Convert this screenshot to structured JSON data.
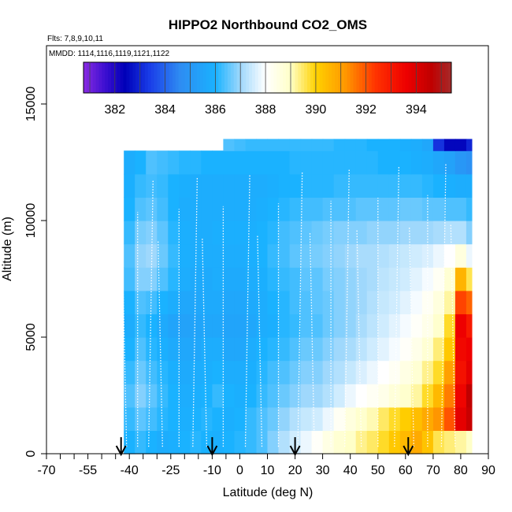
{
  "chart_data": {
    "type": "heatmap",
    "title": "HIPPO2 Northbound CO2_OMS",
    "flights_label": "Flts: 7,8,9,10,11",
    "dates_label": "MMDD: 1114,1116,1119,1121,1122",
    "xlabel": "Latitude (deg N)",
    "ylabel": "Altitude (m)",
    "xlim": [
      -70,
      90
    ],
    "ylim": [
      0,
      17500
    ],
    "x_tick_values": [
      -70,
      -55,
      -40,
      -25,
      -10,
      0,
      10,
      20,
      30,
      40,
      50,
      60,
      70,
      80,
      90
    ],
    "x_tick_labels": [
      "-70",
      "-55",
      "-40",
      "-25",
      "-10",
      "0",
      "10",
      "20",
      "30",
      "40",
      "50",
      "60",
      "70",
      "80",
      "90"
    ],
    "x_minor_ticks": [
      -65,
      -60,
      -50,
      -45,
      -35,
      -30,
      -20,
      -15,
      -5
    ],
    "y_tick_values": [
      0,
      5000,
      10000,
      15000
    ],
    "y_tick_labels": [
      "0",
      "5000",
      "10000",
      "15000"
    ],
    "colorbar": {
      "min": 380.75,
      "max": 395.4,
      "tick_values": [
        382,
        384,
        386,
        388,
        390,
        392,
        394
      ],
      "tick_labels": [
        "382",
        "384",
        "386",
        "388",
        "390",
        "392",
        "394"
      ],
      "stops": [
        {
          "v": 380.75,
          "c": "#8a2be2"
        },
        {
          "v": 381.6,
          "c": "#3d0fd1"
        },
        {
          "v": 382.4,
          "c": "#0000b8"
        },
        {
          "v": 383.4,
          "c": "#1a3ee8"
        },
        {
          "v": 384.6,
          "c": "#2e8cf2"
        },
        {
          "v": 386.0,
          "c": "#1ab2ff"
        },
        {
          "v": 387.0,
          "c": "#9fd8fc"
        },
        {
          "v": 388.0,
          "c": "#ffffff"
        },
        {
          "v": 389.0,
          "c": "#ffffc8"
        },
        {
          "v": 390.0,
          "c": "#ffd200"
        },
        {
          "v": 391.2,
          "c": "#ff9600"
        },
        {
          "v": 392.4,
          "c": "#ff3200"
        },
        {
          "v": 393.6,
          "c": "#ee0000"
        },
        {
          "v": 394.6,
          "c": "#c00000"
        },
        {
          "v": 395.4,
          "c": "#a52a2a"
        }
      ]
    },
    "latitude_bins": [
      -42,
      -38,
      -34,
      -30,
      -26,
      -22,
      -18,
      -14,
      -10,
      -6,
      -2,
      2,
      6,
      10,
      14,
      18,
      22,
      26,
      30,
      34,
      38,
      42,
      46,
      50,
      54,
      58,
      62,
      66,
      70,
      74,
      78,
      82,
      84
    ],
    "altitude_bins": [
      0,
      1000,
      2000,
      3000,
      4000,
      5000,
      6000,
      7000,
      8000,
      9000,
      10000,
      11000,
      12000,
      13000
    ],
    "co2_grid_ppm": [
      [
        386.0,
        386.2,
        386.0,
        385.8,
        385.9,
        386.0,
        386.1,
        386.0,
        385.9,
        386.0,
        386.1,
        386.2,
        386.4,
        386.8,
        387.2,
        387.5,
        387.8,
        388.1,
        388.5,
        388.8,
        389.0,
        389.3,
        389.5,
        389.8,
        390.2,
        390.5,
        390.8,
        390.3,
        389.6,
        389.4,
        389.2,
        389.0
      ],
      [
        386.2,
        386.5,
        386.3,
        386.1,
        386.0,
        385.9,
        386.0,
        386.1,
        386.0,
        385.9,
        386.0,
        386.2,
        386.4,
        386.6,
        386.9,
        387.2,
        387.4,
        387.5,
        387.8,
        388.2,
        388.6,
        388.9,
        389.1,
        389.5,
        389.8,
        390.1,
        390.4,
        390.8,
        391.2,
        392.0,
        393.8,
        394.4
      ],
      [
        386.4,
        386.8,
        386.5,
        386.2,
        386.0,
        385.8,
        385.9,
        386.0,
        386.2,
        386.0,
        385.9,
        386.0,
        386.2,
        386.4,
        386.6,
        386.8,
        387.0,
        387.0,
        387.2,
        387.5,
        387.8,
        388.0,
        388.2,
        388.4,
        388.7,
        388.9,
        389.2,
        389.8,
        390.5,
        391.5,
        393.5,
        394.6
      ],
      [
        386.2,
        386.6,
        386.3,
        386.1,
        385.9,
        385.7,
        385.8,
        385.9,
        386.0,
        385.8,
        385.8,
        385.9,
        386.1,
        386.3,
        386.4,
        386.6,
        386.8,
        386.8,
        387.0,
        387.2,
        387.4,
        387.6,
        387.8,
        388.0,
        388.2,
        388.5,
        388.8,
        389.3,
        389.8,
        391.0,
        393.2,
        393.8
      ],
      [
        386.0,
        386.4,
        386.1,
        385.9,
        385.7,
        385.6,
        385.6,
        385.8,
        385.8,
        385.6,
        385.6,
        385.8,
        386.0,
        386.1,
        386.2,
        386.4,
        386.6,
        386.6,
        386.8,
        387.0,
        387.1,
        387.3,
        387.5,
        387.7,
        387.9,
        388.1,
        388.4,
        388.8,
        389.4,
        390.2,
        393.4,
        393.6
      ],
      [
        385.8,
        386.2,
        386.0,
        385.7,
        385.5,
        385.4,
        385.5,
        385.6,
        385.6,
        385.5,
        385.5,
        385.6,
        385.8,
        385.9,
        386.1,
        386.2,
        386.4,
        386.4,
        386.6,
        386.8,
        386.9,
        387.1,
        387.3,
        387.5,
        387.7,
        387.9,
        388.1,
        388.4,
        388.9,
        389.8,
        393.6,
        393.0
      ],
      [
        386.0,
        386.4,
        386.3,
        386.0,
        385.8,
        385.6,
        385.6,
        385.7,
        385.7,
        385.6,
        385.6,
        385.7,
        385.8,
        386.0,
        386.1,
        386.3,
        386.4,
        386.5,
        386.6,
        386.8,
        386.9,
        387.0,
        387.2,
        387.4,
        387.5,
        387.7,
        387.9,
        388.2,
        388.6,
        389.2,
        392.2,
        391.8
      ],
      [
        386.3,
        386.8,
        386.8,
        386.4,
        386.1,
        385.8,
        385.7,
        385.7,
        385.8,
        385.7,
        385.7,
        385.8,
        385.9,
        386.1,
        386.2,
        386.3,
        386.5,
        386.5,
        386.7,
        386.8,
        386.9,
        387.0,
        387.1,
        387.3,
        387.4,
        387.5,
        387.7,
        387.9,
        388.2,
        388.8,
        390.6,
        389.6
      ],
      [
        386.4,
        386.9,
        387.0,
        386.6,
        386.2,
        385.9,
        385.8,
        385.8,
        385.8,
        385.8,
        385.8,
        385.9,
        386.0,
        386.2,
        386.3,
        386.5,
        386.6,
        386.7,
        386.8,
        386.9,
        387.0,
        387.1,
        387.1,
        387.2,
        387.3,
        387.4,
        387.5,
        387.6,
        387.8,
        388.0,
        388.6,
        387.8
      ],
      [
        386.2,
        386.7,
        386.8,
        386.5,
        386.1,
        385.9,
        385.8,
        385.8,
        385.9,
        385.9,
        385.9,
        385.9,
        386.0,
        386.1,
        386.3,
        386.4,
        386.5,
        386.6,
        386.7,
        386.8,
        386.8,
        386.8,
        386.9,
        386.9,
        386.9,
        387.0,
        387.0,
        387.0,
        387.1,
        387.2,
        387.2,
        386.8
      ],
      [
        386.0,
        386.4,
        386.5,
        386.3,
        386.0,
        385.8,
        385.8,
        385.8,
        385.8,
        385.8,
        385.8,
        385.8,
        385.9,
        386.0,
        386.1,
        386.2,
        386.3,
        386.3,
        386.4,
        386.4,
        386.4,
        386.5,
        386.5,
        386.5,
        386.5,
        386.6,
        386.6,
        386.5,
        386.5,
        386.4,
        386.4,
        386.2
      ],
      [
        385.9,
        386.2,
        386.3,
        386.2,
        386.0,
        385.9,
        385.8,
        385.8,
        385.8,
        385.8,
        385.8,
        385.8,
        385.8,
        385.9,
        386.0,
        386.0,
        386.1,
        386.1,
        386.1,
        386.2,
        386.2,
        386.2,
        386.2,
        386.2,
        386.2,
        386.2,
        386.2,
        386.1,
        386.0,
        385.9,
        385.8,
        385.8
      ],
      [
        385.8,
        386.0,
        386.4,
        386.3,
        386.2,
        386.1,
        386.1,
        386.0,
        386.0,
        386.0,
        386.0,
        386.0,
        386.0,
        386.0,
        386.0,
        386.1,
        386.1,
        386.1,
        386.1,
        386.1,
        386.1,
        386.1,
        386.1,
        386.0,
        386.0,
        386.0,
        385.9,
        385.8,
        385.6,
        385.4,
        385.0,
        384.8
      ],
      [
        null,
        null,
        null,
        null,
        null,
        null,
        null,
        null,
        null,
        386.4,
        386.3,
        386.2,
        386.2,
        386.2,
        386.2,
        386.2,
        386.2,
        386.2,
        386.2,
        386.1,
        386.1,
        386.1,
        386.0,
        386.0,
        386.0,
        385.9,
        385.8,
        385.6,
        383.2,
        382.5,
        382.5,
        383.0
      ]
    ],
    "flight_track_note": "",
    "arrow_markers_lat": [
      -43,
      -10,
      20,
      61
    ]
  }
}
